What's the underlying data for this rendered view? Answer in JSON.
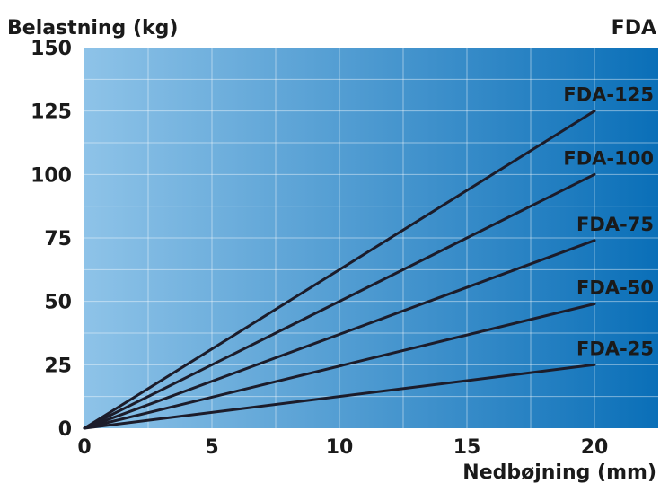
{
  "chart_data": {
    "type": "line",
    "title": "FDA",
    "xlabel": "Nedbøjning (mm)",
    "ylabel": "Belastning (kg)",
    "xlim": [
      0,
      22.5
    ],
    "ylim": [
      0,
      150
    ],
    "xticks": [
      0,
      5,
      10,
      15,
      20
    ],
    "yticks": [
      0,
      25,
      50,
      75,
      100,
      125,
      150
    ],
    "grid": true,
    "legend": "end-of-line labels",
    "background_gradient": [
      "#8ec3e8",
      "#0a6fb8"
    ],
    "line_color": "#1c1c2a",
    "series": [
      {
        "name": "FDA-125",
        "x": [
          0,
          20
        ],
        "y": [
          0,
          125
        ]
      },
      {
        "name": "FDA-100",
        "x": [
          0,
          20
        ],
        "y": [
          0,
          100
        ]
      },
      {
        "name": "FDA-75",
        "x": [
          0,
          20
        ],
        "y": [
          0,
          74
        ]
      },
      {
        "name": "FDA-50",
        "x": [
          0,
          20
        ],
        "y": [
          0,
          49
        ]
      },
      {
        "name": "FDA-25",
        "x": [
          0,
          20
        ],
        "y": [
          0,
          25
        ]
      }
    ]
  }
}
